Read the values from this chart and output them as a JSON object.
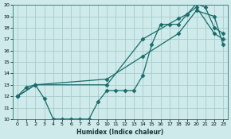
{
  "xlabel": "Humidex (Indice chaleur)",
  "bg_color": "#ceeaea",
  "grid_color": "#a8cccc",
  "line_color": "#1a6b6b",
  "xlim": [
    -0.5,
    23.5
  ],
  "ylim": [
    10,
    20
  ],
  "xticks": [
    0,
    1,
    2,
    3,
    4,
    5,
    6,
    7,
    8,
    9,
    10,
    11,
    12,
    13,
    14,
    15,
    16,
    17,
    18,
    19,
    20,
    21,
    22,
    23
  ],
  "yticks": [
    10,
    11,
    12,
    13,
    14,
    15,
    16,
    17,
    18,
    19,
    20
  ],
  "line1_x": [
    0,
    1,
    2,
    3,
    4,
    5,
    6,
    7,
    8,
    9,
    10,
    11,
    12,
    13,
    14,
    15,
    16,
    17,
    18,
    19,
    20,
    21,
    22,
    23
  ],
  "line1_y": [
    12,
    12.8,
    13,
    11.8,
    10.0,
    10.0,
    10.0,
    10.0,
    10.0,
    11.5,
    12.5,
    12.5,
    12.5,
    12.5,
    13.8,
    16.5,
    18.3,
    18.3,
    18.3,
    19.2,
    20.1,
    19.8,
    18.0,
    17.5
  ],
  "line2_x": [
    0,
    2,
    10,
    14,
    18,
    20,
    22,
    23
  ],
  "line2_y": [
    12,
    13,
    13.5,
    15.5,
    17.5,
    19.5,
    19.0,
    16.5
  ],
  "line3_x": [
    0,
    2,
    10,
    14,
    18,
    19,
    20,
    22,
    23
  ],
  "line3_y": [
    12,
    13,
    13.0,
    17.0,
    18.8,
    19.2,
    19.8,
    17.5,
    17.0
  ],
  "markersize": 2.5,
  "linewidth": 0.9
}
